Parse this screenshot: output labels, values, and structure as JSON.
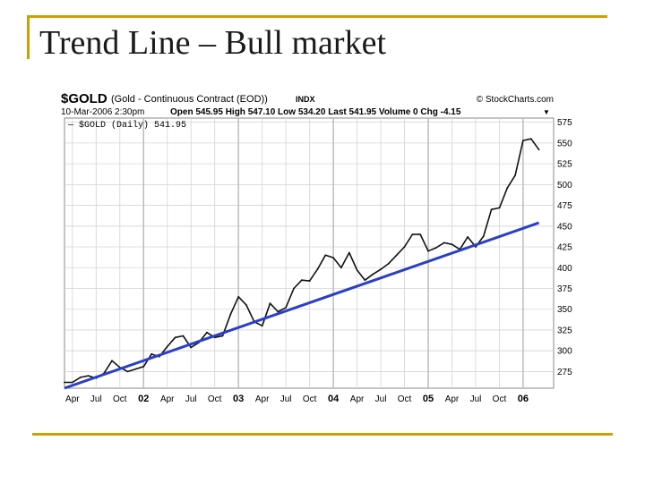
{
  "slide": {
    "title": "Trend Line – Bull market"
  },
  "colors": {
    "accent": "#c8a200",
    "trendline": "#2a3fc8",
    "price": "#111111",
    "grid": "#d4d4d4"
  },
  "chart_header": {
    "symbol": "$GOLD",
    "description": "(Gold - Continuous Contract (EOD))",
    "exchange": "INDX",
    "source": "© StockCharts.com",
    "datetime": "10-Mar-2006 2:30pm",
    "ohlc_line": "Open 545.95 High 547.10 Low 534.20 Last 541.95 Volume 0 Chg -4.15",
    "ohlc_line_arrow": "▼",
    "legend": "— $GOLD (Daily) 541.95"
  },
  "chart_data": {
    "type": "line",
    "title": "$GOLD",
    "xlabel": "",
    "ylabel": "",
    "ylim": [
      255,
      580
    ],
    "y_ticks": [
      275,
      300,
      325,
      350,
      375,
      400,
      425,
      450,
      475,
      500,
      525,
      550,
      575
    ],
    "x_ticks": [
      "Apr",
      "Jul",
      "Oct",
      "02",
      "Apr",
      "Jul",
      "Oct",
      "03",
      "Apr",
      "Jul",
      "Oct",
      "04",
      "Apr",
      "Jul",
      "Oct",
      "05",
      "Apr",
      "Jul",
      "Oct",
      "06"
    ],
    "x_ticks_bold": [
      "02",
      "03",
      "04",
      "05",
      "06"
    ],
    "grid": true,
    "legend": "top-left",
    "series": [
      {
        "name": "$GOLD (Daily) 541.95",
        "color": "#111111",
        "x": [
          "2001-03",
          "2001-04",
          "2001-05",
          "2001-06",
          "2001-07",
          "2001-08",
          "2001-09",
          "2001-10",
          "2001-11",
          "2001-12",
          "2002-01",
          "2002-02",
          "2002-03",
          "2002-04",
          "2002-05",
          "2002-06",
          "2002-07",
          "2002-08",
          "2002-09",
          "2002-10",
          "2002-11",
          "2002-12",
          "2003-01",
          "2003-02",
          "2003-03",
          "2003-04",
          "2003-05",
          "2003-06",
          "2003-07",
          "2003-08",
          "2003-09",
          "2003-10",
          "2003-11",
          "2003-12",
          "2004-01",
          "2004-02",
          "2004-03",
          "2004-04",
          "2004-05",
          "2004-06",
          "2004-07",
          "2004-08",
          "2004-09",
          "2004-10",
          "2004-11",
          "2004-12",
          "2005-01",
          "2005-02",
          "2005-03",
          "2005-04",
          "2005-05",
          "2005-06",
          "2005-07",
          "2005-08",
          "2005-09",
          "2005-10",
          "2005-11",
          "2005-12",
          "2006-01",
          "2006-02",
          "2006-03"
        ],
        "values": [
          262,
          262,
          268,
          270,
          267,
          273,
          288,
          280,
          275,
          278,
          281,
          296,
          293,
          305,
          316,
          318,
          304,
          310,
          322,
          316,
          318,
          344,
          365,
          355,
          335,
          330,
          357,
          347,
          352,
          375,
          385,
          384,
          398,
          415,
          412,
          400,
          418,
          397,
          385,
          392,
          398,
          405,
          415,
          425,
          440,
          440,
          420,
          424,
          430,
          428,
          422,
          437,
          425,
          438,
          470,
          472,
          496,
          511,
          553,
          555,
          542
        ]
      },
      {
        "name": "Trend Line",
        "color": "#2a3fc8",
        "x": [
          "2001-03",
          "2006-03"
        ],
        "values": [
          255,
          454
        ]
      }
    ]
  }
}
